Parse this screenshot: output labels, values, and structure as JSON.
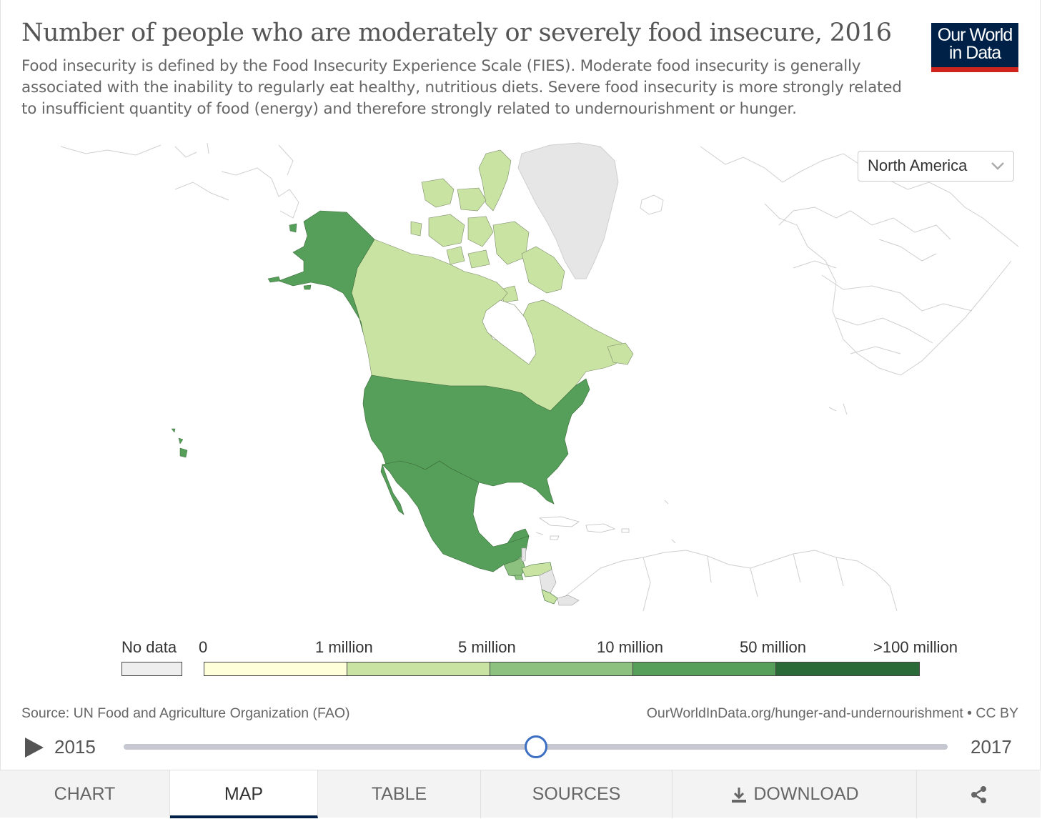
{
  "header": {
    "title": "Number of people who are moderately or severely food insecure, 2016",
    "subtitle": "Food insecurity is defined by the Food Insecurity Experience Scale (FIES). Moderate food insecurity is generally associated with the inability to regularly eat healthy, nutritious diets. Severe food insecurity is more strongly related to insufficient quantity of food (energy) and therefore strongly related to undernourishment or hunger.",
    "logo_line1": "Our World",
    "logo_line2": "in Data"
  },
  "region_select": {
    "selected": "North America"
  },
  "map_data": {
    "region": "North America",
    "countries": [
      {
        "name": "United States",
        "bin": "10 million – 50 million"
      },
      {
        "name": "Mexico",
        "bin": "10 million – 50 million"
      },
      {
        "name": "Canada",
        "bin": "1 million – 5 million"
      },
      {
        "name": "Guatemala",
        "bin": "5 million – 10 million"
      },
      {
        "name": "Honduras",
        "bin": "1 million – 5 million"
      },
      {
        "name": "Costa Rica",
        "bin": "1 million – 5 million"
      },
      {
        "name": "Nicaragua",
        "bin": "No data"
      },
      {
        "name": "Greenland",
        "bin": "No data"
      },
      {
        "name": "Hawaii (United States)",
        "bin": "10 million – 50 million"
      }
    ]
  },
  "legend": {
    "no_data_label": "No data",
    "no_data_color": "#eeeeee",
    "tick_labels": [
      "0",
      "1 million",
      "5 million",
      "10 million",
      "50 million",
      ">100 million"
    ],
    "bin_colors": [
      "#ffffd9",
      "#c9e3a2",
      "#8cc17f",
      "#569f5a",
      "#2a6a39"
    ]
  },
  "footer": {
    "source": "Source: UN Food and Agriculture Organization (FAO)",
    "url": "OurWorldInData.org/hunger-and-undernourishment • CC BY"
  },
  "timeline": {
    "start_year": "2015",
    "end_year": "2017",
    "selected_year": 2016
  },
  "tabs": {
    "chart": "CHART",
    "map": "MAP",
    "table": "TABLE",
    "sources": "SOURCES",
    "download": "DOWNLOAD"
  },
  "icons": {
    "play": "play-icon",
    "download": "download-icon",
    "share": "share-icon",
    "dropdown": "chevron-down-icon"
  }
}
